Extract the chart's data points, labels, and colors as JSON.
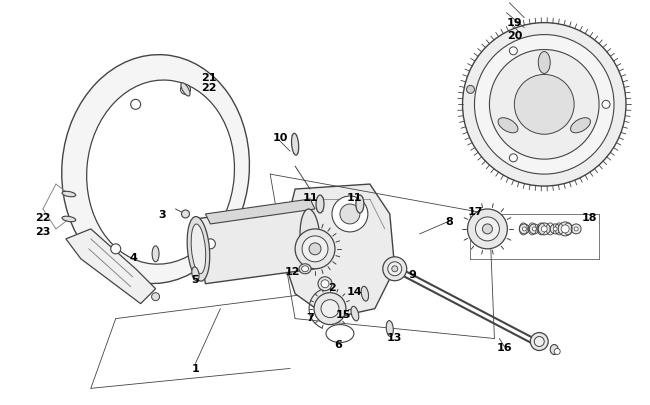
{
  "bg_color": "#ffffff",
  "lc": "#444444",
  "lc_light": "#888888",
  "figsize": [
    6.5,
    4.06
  ],
  "dpi": 100,
  "xlim": [
    0,
    650
  ],
  "ylim": [
    0,
    406
  ]
}
